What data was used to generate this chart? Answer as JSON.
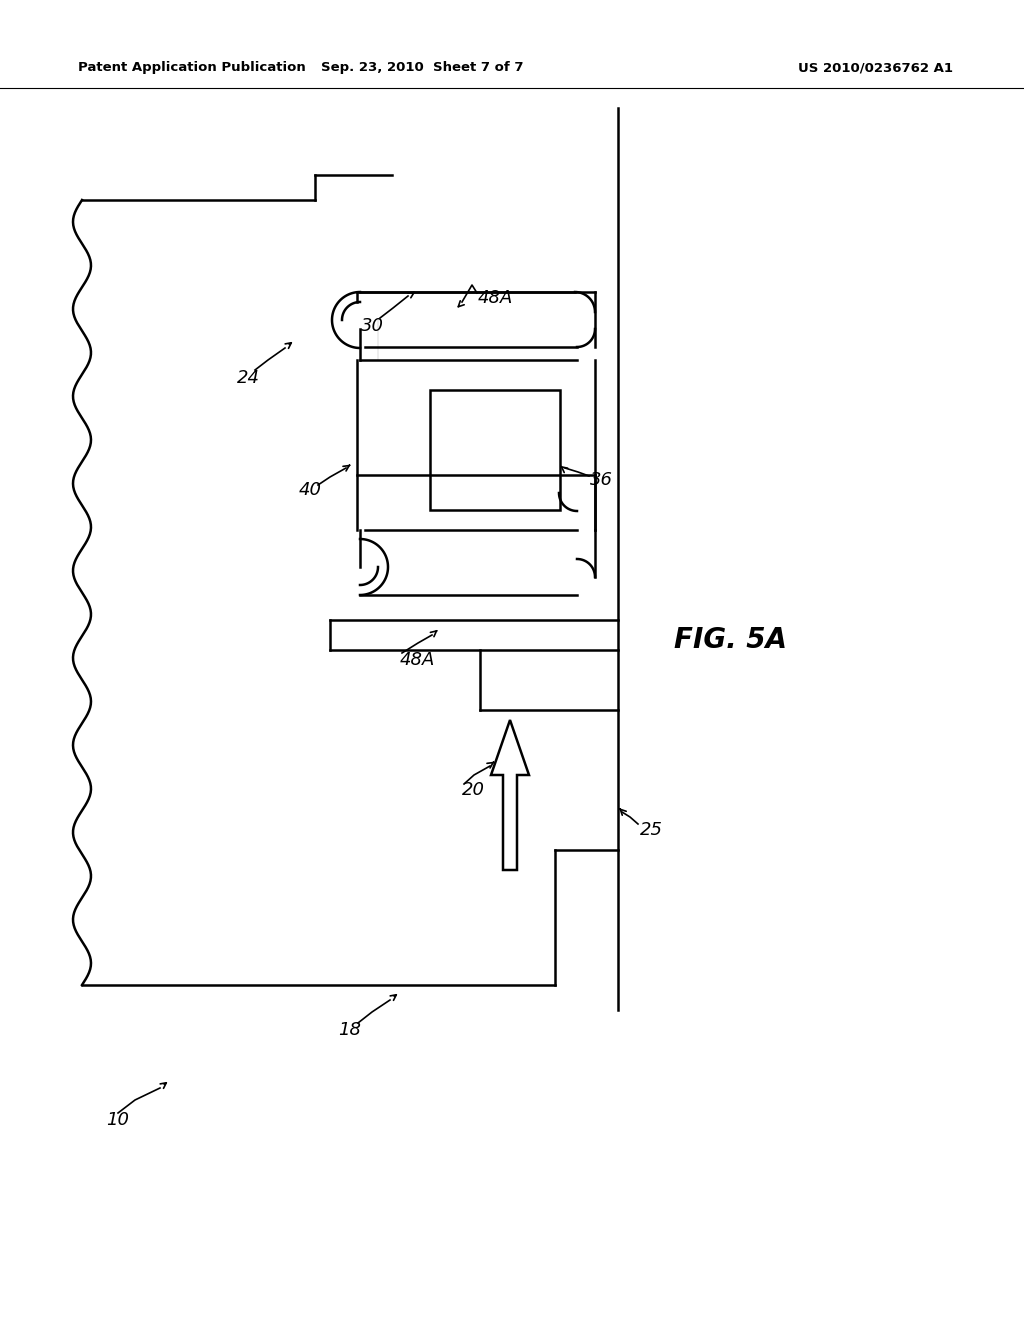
{
  "bg_color": "#ffffff",
  "lc": "#000000",
  "header_left": "Patent Application Publication",
  "header_mid": "Sep. 23, 2010  Sheet 7 of 7",
  "header_right": "US 2010/0236762 A1",
  "fig_label": "FIG. 5A",
  "lw": 1.8,
  "lw_thin": 1.2
}
